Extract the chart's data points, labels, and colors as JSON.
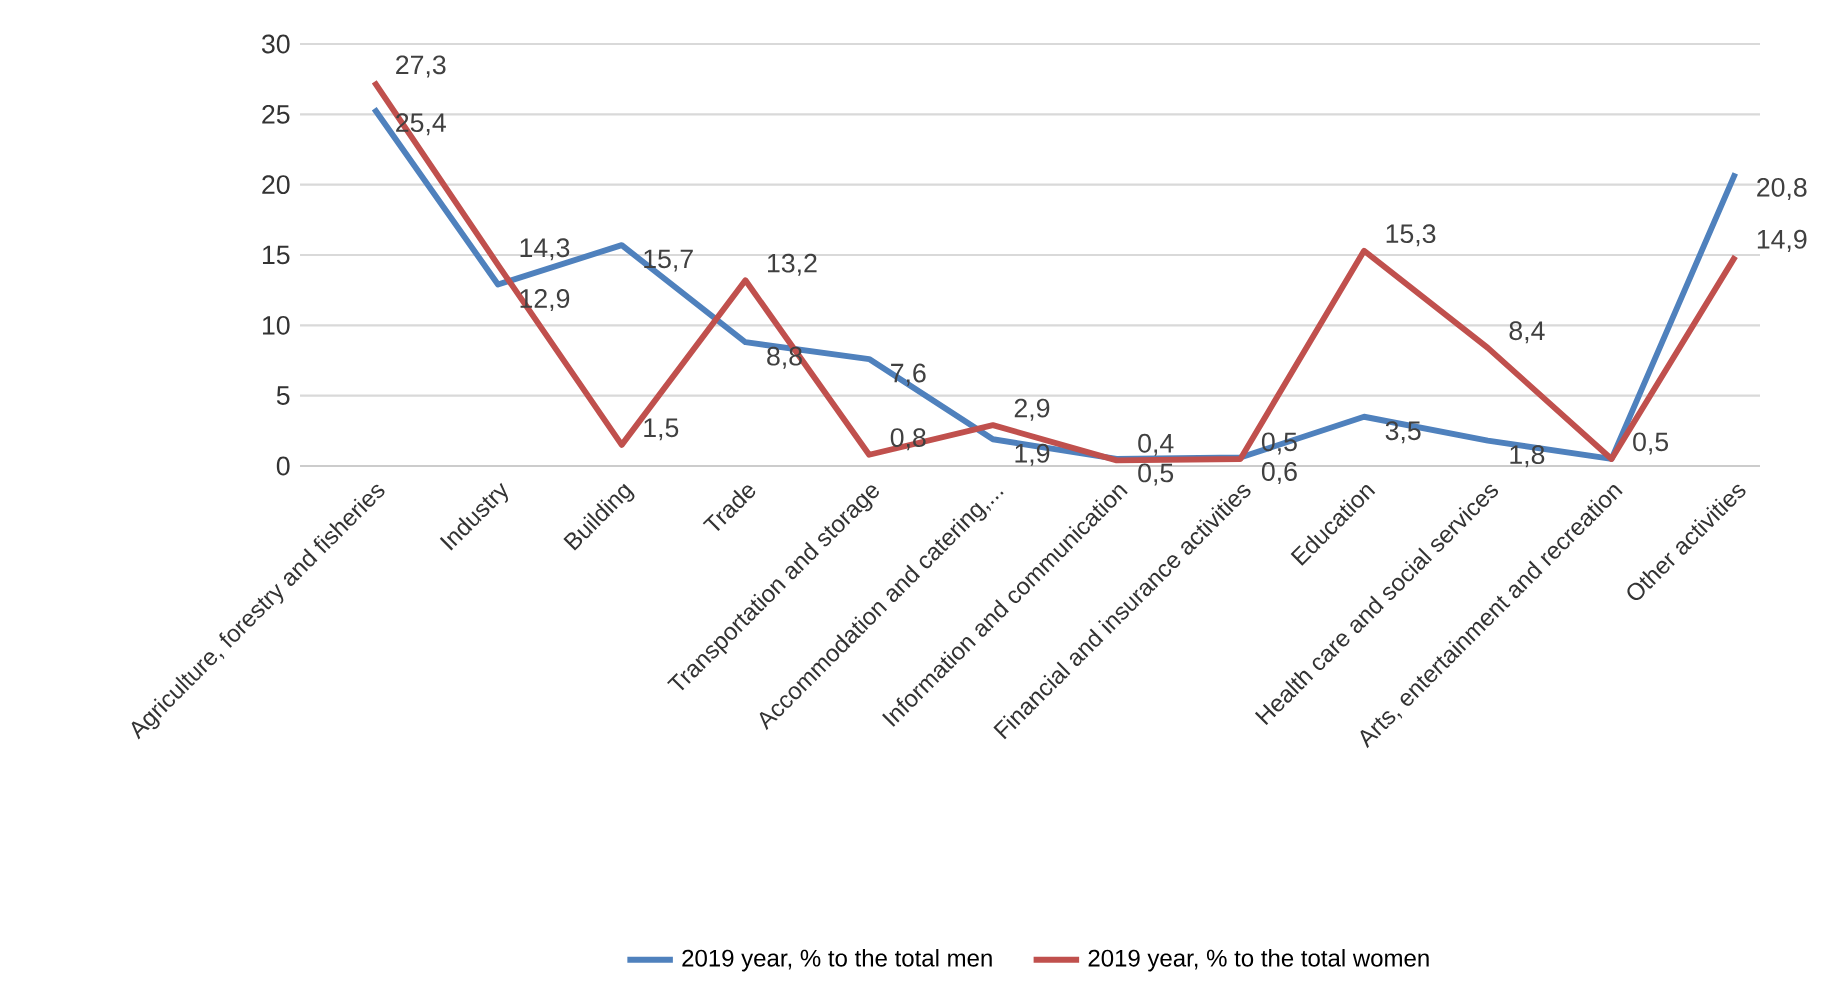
{
  "chart_data": {
    "type": "line",
    "categories": [
      "Agriculture, forestry and fisheries",
      "Industry",
      "Building",
      "Trade",
      "Transportation and storage",
      "Accommodation and catering,...",
      "Information and communication",
      "Financial and insurance activities",
      "Education",
      "Health care and social services",
      "Arts, entertainment and  recreation",
      "Other activities"
    ],
    "series": [
      {
        "name": "2019 year, % to the total men",
        "color": "#4f81bd",
        "values": [
          25.4,
          12.9,
          15.7,
          8.8,
          7.6,
          1.9,
          0.5,
          0.6,
          3.5,
          1.8,
          0.5,
          20.8
        ],
        "value_labels": [
          "25,4",
          "12,9",
          "15,7",
          "8,8",
          "7,6",
          "1,9",
          "0,5",
          "0,6",
          "3,5",
          "1,8",
          null,
          "20,8"
        ]
      },
      {
        "name": "2019 year, % to the total women",
        "color": "#c0504d",
        "values": [
          27.3,
          14.3,
          1.5,
          13.2,
          0.8,
          2.9,
          0.4,
          0.5,
          15.3,
          8.4,
          0.5,
          14.9
        ],
        "value_labels": [
          "27,3",
          "14,3",
          "1,5",
          "13,2",
          "0,8",
          "2,9",
          "0,4",
          "0,5",
          "15,3",
          "8,4",
          "0,5",
          "14,9"
        ]
      }
    ],
    "ylim": [
      0,
      30
    ],
    "yticks": [
      0,
      5,
      10,
      15,
      20,
      25,
      30
    ],
    "grid": "y",
    "legend": "bottom",
    "marker": "none",
    "line_style": "solid"
  }
}
